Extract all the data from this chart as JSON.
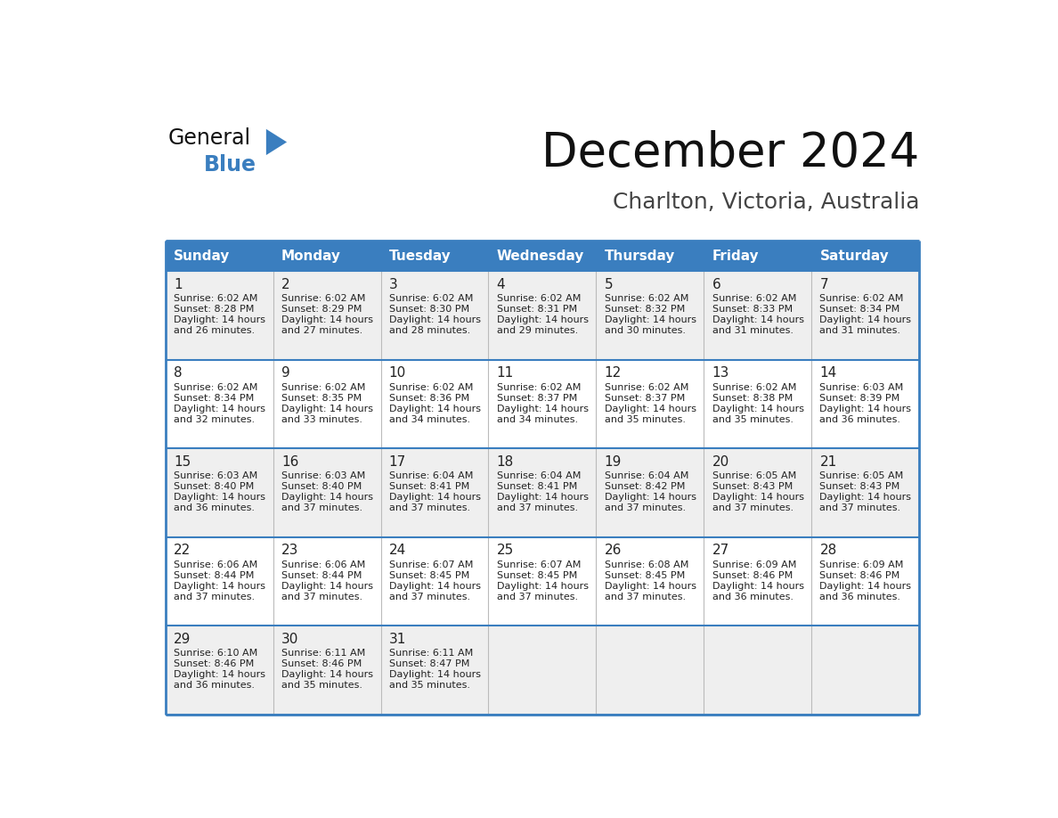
{
  "title": "December 2024",
  "subtitle": "Charlton, Victoria, Australia",
  "header_color": "#3a7ebf",
  "header_text_color": "#ffffff",
  "row_bg_even": "#efefef",
  "row_bg_odd": "#ffffff",
  "border_color": "#3a7ebf",
  "cell_border_color": "#3a7ebf",
  "days_of_week": [
    "Sunday",
    "Monday",
    "Tuesday",
    "Wednesday",
    "Thursday",
    "Friday",
    "Saturday"
  ],
  "weeks": [
    [
      {
        "day": 1,
        "sunrise": "6:02 AM",
        "sunset": "8:28 PM",
        "daylight_h": "14 hours",
        "daylight_m": "and 26 minutes."
      },
      {
        "day": 2,
        "sunrise": "6:02 AM",
        "sunset": "8:29 PM",
        "daylight_h": "14 hours",
        "daylight_m": "and 27 minutes."
      },
      {
        "day": 3,
        "sunrise": "6:02 AM",
        "sunset": "8:30 PM",
        "daylight_h": "14 hours",
        "daylight_m": "and 28 minutes."
      },
      {
        "day": 4,
        "sunrise": "6:02 AM",
        "sunset": "8:31 PM",
        "daylight_h": "14 hours",
        "daylight_m": "and 29 minutes."
      },
      {
        "day": 5,
        "sunrise": "6:02 AM",
        "sunset": "8:32 PM",
        "daylight_h": "14 hours",
        "daylight_m": "and 30 minutes."
      },
      {
        "day": 6,
        "sunrise": "6:02 AM",
        "sunset": "8:33 PM",
        "daylight_h": "14 hours",
        "daylight_m": "and 31 minutes."
      },
      {
        "day": 7,
        "sunrise": "6:02 AM",
        "sunset": "8:34 PM",
        "daylight_h": "14 hours",
        "daylight_m": "and 31 minutes."
      }
    ],
    [
      {
        "day": 8,
        "sunrise": "6:02 AM",
        "sunset": "8:34 PM",
        "daylight_h": "14 hours",
        "daylight_m": "and 32 minutes."
      },
      {
        "day": 9,
        "sunrise": "6:02 AM",
        "sunset": "8:35 PM",
        "daylight_h": "14 hours",
        "daylight_m": "and 33 minutes."
      },
      {
        "day": 10,
        "sunrise": "6:02 AM",
        "sunset": "8:36 PM",
        "daylight_h": "14 hours",
        "daylight_m": "and 34 minutes."
      },
      {
        "day": 11,
        "sunrise": "6:02 AM",
        "sunset": "8:37 PM",
        "daylight_h": "14 hours",
        "daylight_m": "and 34 minutes."
      },
      {
        "day": 12,
        "sunrise": "6:02 AM",
        "sunset": "8:37 PM",
        "daylight_h": "14 hours",
        "daylight_m": "and 35 minutes."
      },
      {
        "day": 13,
        "sunrise": "6:02 AM",
        "sunset": "8:38 PM",
        "daylight_h": "14 hours",
        "daylight_m": "and 35 minutes."
      },
      {
        "day": 14,
        "sunrise": "6:03 AM",
        "sunset": "8:39 PM",
        "daylight_h": "14 hours",
        "daylight_m": "and 36 minutes."
      }
    ],
    [
      {
        "day": 15,
        "sunrise": "6:03 AM",
        "sunset": "8:40 PM",
        "daylight_h": "14 hours",
        "daylight_m": "and 36 minutes."
      },
      {
        "day": 16,
        "sunrise": "6:03 AM",
        "sunset": "8:40 PM",
        "daylight_h": "14 hours",
        "daylight_m": "and 37 minutes."
      },
      {
        "day": 17,
        "sunrise": "6:04 AM",
        "sunset": "8:41 PM",
        "daylight_h": "14 hours",
        "daylight_m": "and 37 minutes."
      },
      {
        "day": 18,
        "sunrise": "6:04 AM",
        "sunset": "8:41 PM",
        "daylight_h": "14 hours",
        "daylight_m": "and 37 minutes."
      },
      {
        "day": 19,
        "sunrise": "6:04 AM",
        "sunset": "8:42 PM",
        "daylight_h": "14 hours",
        "daylight_m": "and 37 minutes."
      },
      {
        "day": 20,
        "sunrise": "6:05 AM",
        "sunset": "8:43 PM",
        "daylight_h": "14 hours",
        "daylight_m": "and 37 minutes."
      },
      {
        "day": 21,
        "sunrise": "6:05 AM",
        "sunset": "8:43 PM",
        "daylight_h": "14 hours",
        "daylight_m": "and 37 minutes."
      }
    ],
    [
      {
        "day": 22,
        "sunrise": "6:06 AM",
        "sunset": "8:44 PM",
        "daylight_h": "14 hours",
        "daylight_m": "and 37 minutes."
      },
      {
        "day": 23,
        "sunrise": "6:06 AM",
        "sunset": "8:44 PM",
        "daylight_h": "14 hours",
        "daylight_m": "and 37 minutes."
      },
      {
        "day": 24,
        "sunrise": "6:07 AM",
        "sunset": "8:45 PM",
        "daylight_h": "14 hours",
        "daylight_m": "and 37 minutes."
      },
      {
        "day": 25,
        "sunrise": "6:07 AM",
        "sunset": "8:45 PM",
        "daylight_h": "14 hours",
        "daylight_m": "and 37 minutes."
      },
      {
        "day": 26,
        "sunrise": "6:08 AM",
        "sunset": "8:45 PM",
        "daylight_h": "14 hours",
        "daylight_m": "and 37 minutes."
      },
      {
        "day": 27,
        "sunrise": "6:09 AM",
        "sunset": "8:46 PM",
        "daylight_h": "14 hours",
        "daylight_m": "and 36 minutes."
      },
      {
        "day": 28,
        "sunrise": "6:09 AM",
        "sunset": "8:46 PM",
        "daylight_h": "14 hours",
        "daylight_m": "and 36 minutes."
      }
    ],
    [
      {
        "day": 29,
        "sunrise": "6:10 AM",
        "sunset": "8:46 PM",
        "daylight_h": "14 hours",
        "daylight_m": "and 36 minutes."
      },
      {
        "day": 30,
        "sunrise": "6:11 AM",
        "sunset": "8:46 PM",
        "daylight_h": "14 hours",
        "daylight_m": "and 35 minutes."
      },
      {
        "day": 31,
        "sunrise": "6:11 AM",
        "sunset": "8:47 PM",
        "daylight_h": "14 hours",
        "daylight_m": "and 35 minutes."
      },
      null,
      null,
      null,
      null
    ]
  ],
  "logo_triangle_color": "#3a7ebf",
  "fig_width": 11.88,
  "fig_height": 9.18,
  "dpi": 100
}
